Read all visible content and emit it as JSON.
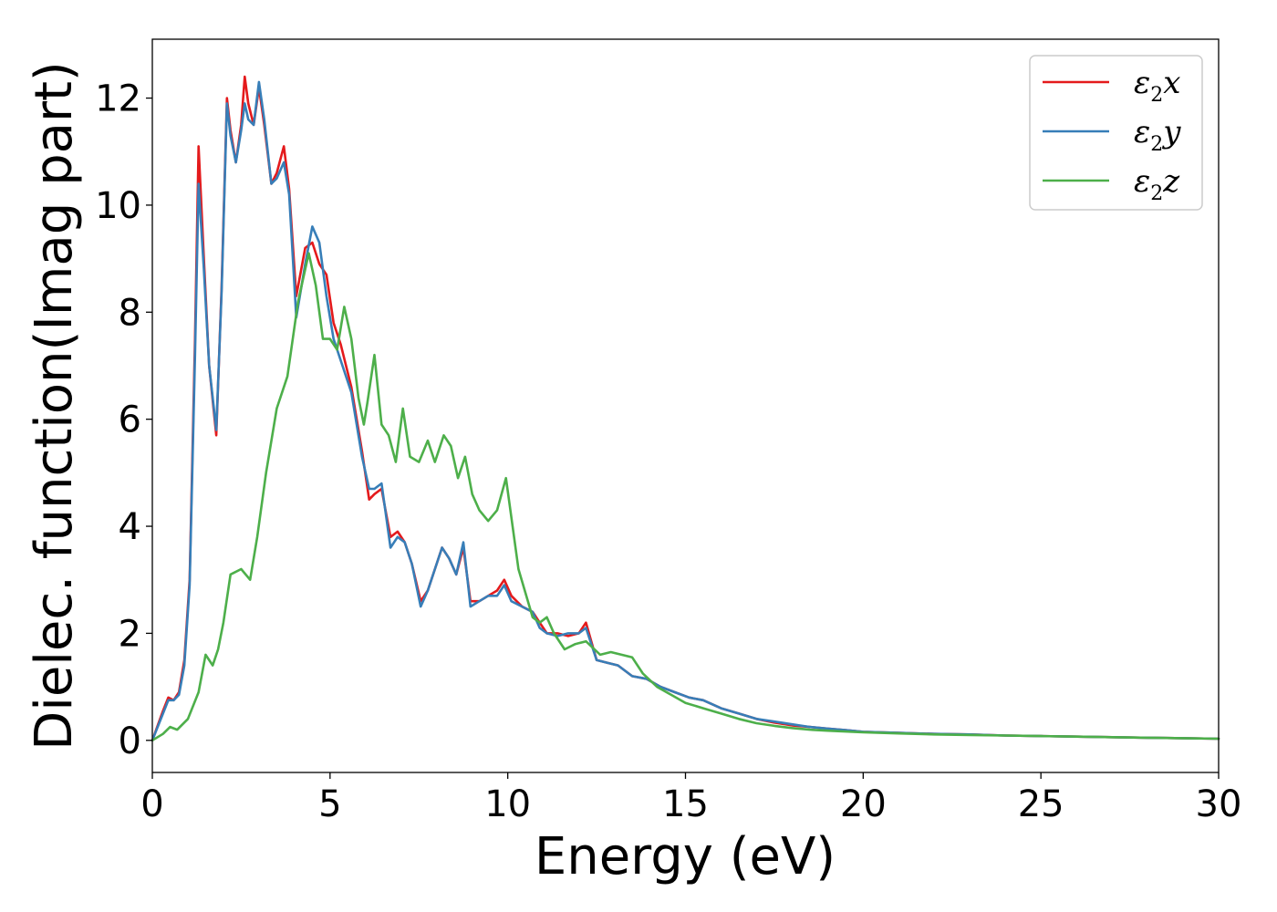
{
  "chart_data": {
    "type": "line",
    "xlabel": "Energy (eV)",
    "ylabel": "Dielec. function(Imag part)",
    "xlim": [
      0,
      30
    ],
    "ylim": [
      -0.6,
      13.1
    ],
    "xticks": [
      0,
      5,
      10,
      15,
      20,
      25,
      30
    ],
    "yticks": [
      0,
      2,
      4,
      6,
      8,
      10,
      12
    ],
    "grid": false,
    "legend_position": "top-right",
    "series": [
      {
        "name": "ε2x",
        "legend_base": "ε",
        "legend_sub": "2",
        "legend_var": "x",
        "color": "#e41a1c",
        "x": [
          0,
          0.3,
          0.45,
          0.6,
          0.75,
          0.9,
          1.05,
          1.2,
          1.3,
          1.45,
          1.6,
          1.8,
          1.95,
          2.1,
          2.2,
          2.35,
          2.5,
          2.6,
          2.7,
          2.85,
          3.0,
          3.15,
          3.35,
          3.5,
          3.7,
          3.85,
          4.05,
          4.3,
          4.5,
          4.7,
          4.9,
          5.1,
          5.3,
          5.6,
          5.9,
          6.1,
          6.25,
          6.45,
          6.7,
          6.9,
          7.1,
          7.3,
          7.55,
          7.75,
          7.95,
          8.15,
          8.35,
          8.55,
          8.75,
          8.95,
          9.2,
          9.45,
          9.7,
          9.9,
          10.1,
          10.4,
          10.7,
          10.9,
          11.1,
          11.4,
          11.7,
          12.0,
          12.2,
          12.5,
          12.8,
          13.1,
          13.5,
          13.9,
          14.3,
          14.7,
          15.1,
          15.5,
          16.0,
          16.5,
          17.0,
          17.5,
          18.0,
          18.5,
          19.0,
          19.5,
          20.0,
          21,
          22,
          23,
          24,
          25,
          26,
          27,
          28,
          29,
          30
        ],
        "y": [
          0,
          0.55,
          0.8,
          0.75,
          0.9,
          1.5,
          3.0,
          7.5,
          11.1,
          9.0,
          7.0,
          5.7,
          8.5,
          12.0,
          11.4,
          10.8,
          11.5,
          12.4,
          11.9,
          11.5,
          12.2,
          11.5,
          10.4,
          10.6,
          11.1,
          10.3,
          8.3,
          9.2,
          9.3,
          8.9,
          8.7,
          7.8,
          7.4,
          6.6,
          5.4,
          4.5,
          4.6,
          4.7,
          3.8,
          3.9,
          3.7,
          3.3,
          2.6,
          2.8,
          3.2,
          3.6,
          3.4,
          3.1,
          3.6,
          2.6,
          2.6,
          2.7,
          2.8,
          3.0,
          2.7,
          2.5,
          2.4,
          2.2,
          2.0,
          2.0,
          1.95,
          2.0,
          2.2,
          1.5,
          1.45,
          1.4,
          1.2,
          1.15,
          1.0,
          0.9,
          0.8,
          0.75,
          0.6,
          0.5,
          0.4,
          0.33,
          0.28,
          0.25,
          0.22,
          0.19,
          0.16,
          0.14,
          0.12,
          0.11,
          0.09,
          0.08,
          0.07,
          0.06,
          0.05,
          0.04,
          0.03
        ]
      },
      {
        "name": "ε2y",
        "legend_base": "ε",
        "legend_sub": "2",
        "legend_var": "y",
        "color": "#377eb8",
        "x": [
          0,
          0.3,
          0.45,
          0.6,
          0.75,
          0.9,
          1.05,
          1.2,
          1.3,
          1.45,
          1.6,
          1.8,
          1.95,
          2.1,
          2.2,
          2.35,
          2.5,
          2.6,
          2.7,
          2.85,
          3.0,
          3.15,
          3.35,
          3.5,
          3.7,
          3.85,
          4.05,
          4.3,
          4.5,
          4.7,
          4.9,
          5.1,
          5.3,
          5.6,
          5.9,
          6.1,
          6.25,
          6.45,
          6.7,
          6.9,
          7.1,
          7.3,
          7.55,
          7.75,
          7.95,
          8.15,
          8.35,
          8.55,
          8.75,
          8.95,
          9.2,
          9.45,
          9.7,
          9.9,
          10.1,
          10.4,
          10.7,
          10.9,
          11.1,
          11.4,
          11.7,
          12.0,
          12.2,
          12.5,
          12.8,
          13.1,
          13.5,
          13.9,
          14.3,
          14.7,
          15.1,
          15.5,
          16.0,
          16.5,
          17.0,
          17.5,
          18.0,
          18.5,
          19.0,
          19.5,
          20.0,
          21,
          22,
          23,
          24,
          25,
          26,
          27,
          28,
          29,
          30
        ],
        "y": [
          0,
          0.5,
          0.75,
          0.75,
          0.85,
          1.4,
          2.9,
          7.2,
          10.4,
          8.8,
          7.0,
          5.8,
          8.4,
          11.9,
          11.3,
          10.8,
          11.4,
          11.9,
          11.6,
          11.5,
          12.3,
          11.6,
          10.4,
          10.5,
          10.8,
          10.2,
          7.9,
          8.9,
          9.6,
          9.3,
          8.3,
          7.5,
          7.1,
          6.5,
          5.3,
          4.7,
          4.7,
          4.8,
          3.6,
          3.8,
          3.7,
          3.3,
          2.5,
          2.8,
          3.2,
          3.6,
          3.4,
          3.1,
          3.7,
          2.5,
          2.6,
          2.7,
          2.7,
          2.9,
          2.6,
          2.5,
          2.4,
          2.1,
          2.0,
          1.95,
          2.0,
          2.0,
          2.1,
          1.5,
          1.45,
          1.4,
          1.2,
          1.15,
          1.0,
          0.9,
          0.8,
          0.75,
          0.6,
          0.5,
          0.4,
          0.35,
          0.3,
          0.25,
          0.22,
          0.19,
          0.16,
          0.14,
          0.12,
          0.11,
          0.09,
          0.08,
          0.07,
          0.06,
          0.05,
          0.04,
          0.03
        ]
      },
      {
        "name": "ε2z",
        "legend_base": "ε",
        "legend_sub": "2",
        "legend_var": "z",
        "color": "#4daf4a",
        "x": [
          0,
          0.3,
          0.5,
          0.7,
          1.0,
          1.3,
          1.5,
          1.7,
          1.85,
          2.0,
          2.2,
          2.5,
          2.75,
          2.95,
          3.2,
          3.5,
          3.8,
          4.1,
          4.4,
          4.6,
          4.8,
          5.0,
          5.2,
          5.4,
          5.6,
          5.8,
          5.95,
          6.05,
          6.25,
          6.45,
          6.65,
          6.85,
          7.05,
          7.25,
          7.5,
          7.75,
          7.95,
          8.2,
          8.4,
          8.6,
          8.8,
          9.0,
          9.2,
          9.45,
          9.7,
          9.95,
          10.3,
          10.7,
          10.9,
          11.1,
          11.3,
          11.6,
          11.9,
          12.2,
          12.6,
          12.9,
          13.2,
          13.5,
          13.8,
          14.2,
          14.6,
          15.0,
          15.5,
          16.0,
          16.5,
          17.0,
          17.5,
          18.0,
          18.5,
          19.0,
          20.0,
          21,
          22,
          23,
          24,
          25,
          26,
          27,
          28,
          29,
          30
        ],
        "y": [
          0,
          0.12,
          0.25,
          0.2,
          0.4,
          0.9,
          1.6,
          1.4,
          1.7,
          2.2,
          3.1,
          3.2,
          3.0,
          3.8,
          5.0,
          6.2,
          6.8,
          8.2,
          9.1,
          8.5,
          7.5,
          7.5,
          7.3,
          8.1,
          7.5,
          6.4,
          5.9,
          6.3,
          7.2,
          5.9,
          5.7,
          5.2,
          6.2,
          5.3,
          5.2,
          5.6,
          5.2,
          5.7,
          5.5,
          4.9,
          5.3,
          4.6,
          4.3,
          4.1,
          4.3,
          4.9,
          3.2,
          2.3,
          2.2,
          2.3,
          2.0,
          1.7,
          1.8,
          1.85,
          1.6,
          1.65,
          1.6,
          1.55,
          1.25,
          1.0,
          0.85,
          0.7,
          0.6,
          0.5,
          0.4,
          0.32,
          0.27,
          0.23,
          0.2,
          0.18,
          0.15,
          0.13,
          0.11,
          0.1,
          0.09,
          0.08,
          0.07,
          0.06,
          0.05,
          0.04,
          0.03
        ]
      }
    ]
  }
}
